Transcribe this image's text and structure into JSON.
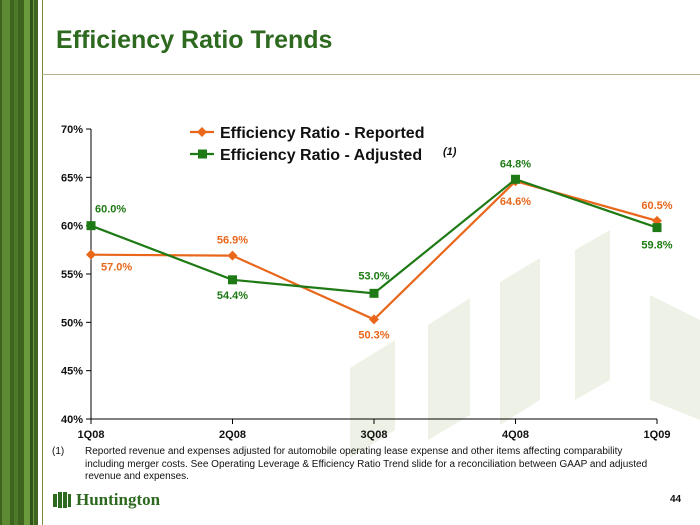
{
  "slide": {
    "title": "Efficiency Ratio Trends",
    "page_number": "44",
    "footnote_marker": "(1)",
    "footnote_text": "Reported revenue and expenses adjusted for automobile operating lease expense and other items affecting comparability including merger costs.  See Operating Leverage & Efficiency Ratio Trend slide for a reconciliation between GAAP and adjusted revenue and expenses.",
    "logo_text": "Huntington",
    "accent_green": "#2d6a1f",
    "sidebar_green": "#3e6420"
  },
  "chart_data": {
    "type": "line",
    "categories": [
      "1Q08",
      "2Q08",
      "3Q08",
      "4Q08",
      "1Q09"
    ],
    "series": [
      {
        "name": "Efficiency Ratio - Reported",
        "color": "#e8671b",
        "marker": "diamond",
        "values": [
          57.0,
          56.9,
          50.3,
          64.6,
          60.5
        ],
        "labels": [
          "57.0%",
          "56.9%",
          "50.3%",
          "64.6%",
          "60.5%"
        ]
      },
      {
        "name": "Efficiency Ratio - Adjusted",
        "name_suffix": "(1)",
        "color": "#1e7a14",
        "marker": "square",
        "values": [
          60.0,
          54.4,
          53.0,
          64.8,
          59.8
        ],
        "labels": [
          "60.0%",
          "54.4%",
          "53.0%",
          "64.8%",
          "59.8%"
        ]
      }
    ],
    "yticks": [
      40,
      45,
      50,
      55,
      60,
      65,
      70
    ],
    "ytick_labels": [
      "40%",
      "45%",
      "50%",
      "55%",
      "60%",
      "65%",
      "70%"
    ],
    "ylim": [
      40,
      70
    ],
    "grid": false,
    "legend_position": "top-center"
  }
}
